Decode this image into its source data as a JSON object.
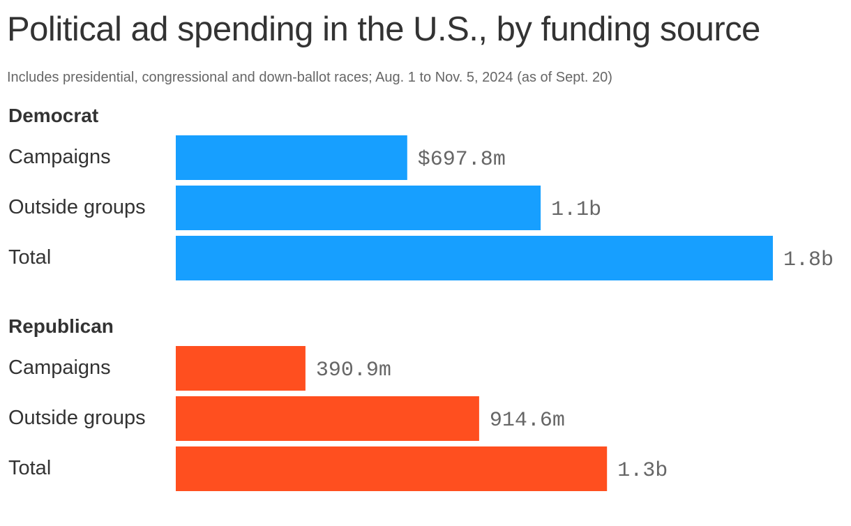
{
  "title": "Political ad spending in the U.S., by funding source",
  "subtitle": "Includes presidential, congressional and down-ballot races; Aug. 1 to Nov. 5, 2024 (as of Sept. 20)",
  "colors": {
    "democrat": "#179fff",
    "republican": "#ff4f1f"
  },
  "chart_data": {
    "type": "bar",
    "orientation": "horizontal",
    "unit": "USD",
    "groups": [
      {
        "name": "Democrat",
        "color": "#179fff",
        "bars": [
          {
            "category": "Campaigns",
            "value": 697.8,
            "label": "$697.8m"
          },
          {
            "category": "Outside groups",
            "value": 1100,
            "label": "1.1b"
          },
          {
            "category": "Total",
            "value": 1800,
            "label": "1.8b"
          }
        ]
      },
      {
        "name": "Republican",
        "color": "#ff4f1f",
        "bars": [
          {
            "category": "Campaigns",
            "value": 390.9,
            "label": "390.9m"
          },
          {
            "category": "Outside groups",
            "value": 914.6,
            "label": "914.6m"
          },
          {
            "category": "Total",
            "value": 1300,
            "label": "1.3b"
          }
        ]
      }
    ],
    "value_unit_note": "values in millions of dollars",
    "xlim": [
      0,
      1800
    ],
    "grid": false,
    "legend": "none"
  }
}
